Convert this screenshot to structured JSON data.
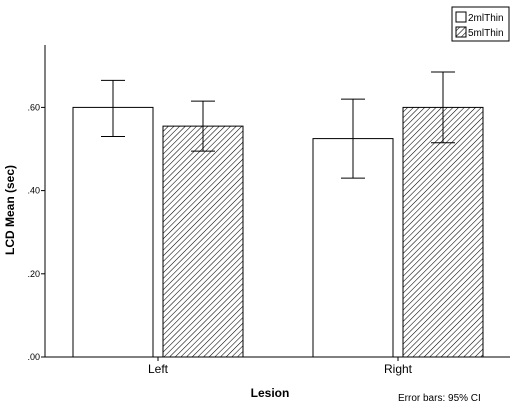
{
  "chart_data": {
    "type": "bar",
    "xlabel": "Lesion",
    "ylabel": "LCD Mean (sec)",
    "categories": [
      "Left",
      "Right"
    ],
    "ylim": [
      0,
      0.75
    ],
    "yticks": [
      0,
      0.2,
      0.4,
      0.6
    ],
    "ytick_labels": [
      ".00",
      ".20",
      ".40",
      ".60"
    ],
    "series": [
      {
        "name": "2mlThin",
        "fill": "plain",
        "values": [
          0.6,
          0.525
        ],
        "ci_low": [
          0.53,
          0.43
        ],
        "ci_high": [
          0.665,
          0.62
        ]
      },
      {
        "name": "5mlThin",
        "fill": "hatched",
        "values": [
          0.555,
          0.6
        ],
        "ci_low": [
          0.495,
          0.515
        ],
        "ci_high": [
          0.615,
          0.685
        ]
      }
    ],
    "legend_position": "top-right",
    "grid": false,
    "note": "Error bars: 95% CI",
    "colors": {
      "bar_fill": "#ffffff",
      "bar_stroke": "#000000",
      "hatch": "#000000",
      "axis": "#000000"
    }
  }
}
